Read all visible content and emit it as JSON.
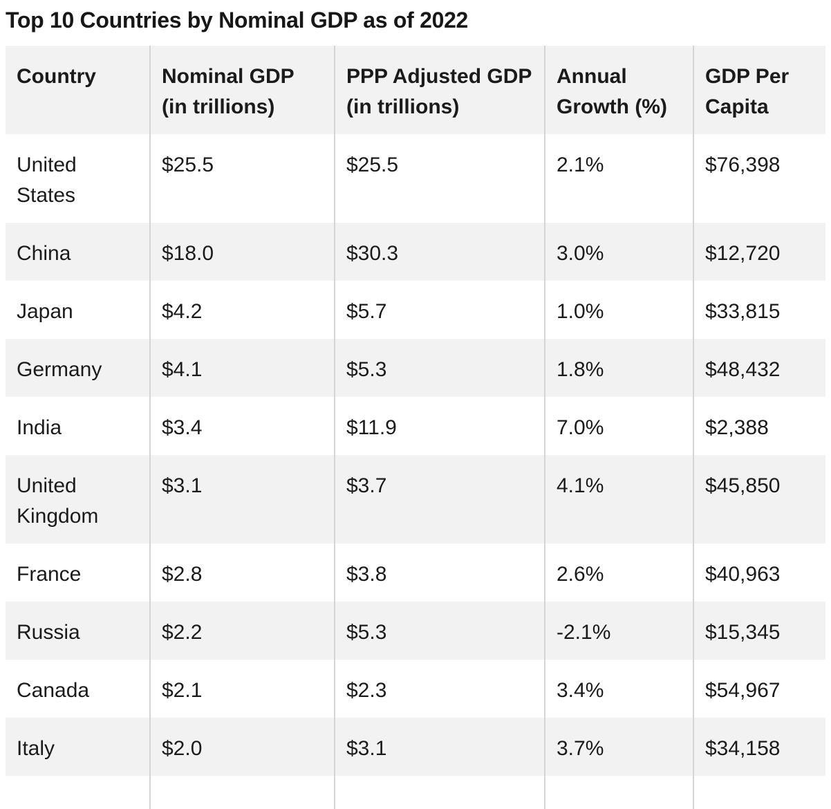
{
  "title": "Top 10 Countries by Nominal GDP as of 2022",
  "table": {
    "columns": [
      "Country",
      "Nominal GDP (in trillions)",
      "PPP Adjusted GDP (in trillions)",
      "Annual Growth (%)",
      "GDP Per Capita"
    ],
    "rows": [
      [
        "United States",
        "$25.5",
        "$25.5",
        "2.1%",
        "$76,398"
      ],
      [
        "China",
        "$18.0",
        "$30.3",
        "3.0%",
        "$12,720"
      ],
      [
        "Japan",
        "$4.2",
        "$5.7",
        "1.0%",
        "$33,815"
      ],
      [
        "Germany",
        "$4.1",
        "$5.3",
        "1.8%",
        "$48,432"
      ],
      [
        "India",
        "$3.4",
        "$11.9",
        "7.0%",
        "$2,388"
      ],
      [
        "United Kingdom",
        "$3.1",
        "$3.7",
        "4.1%",
        "$45,850"
      ],
      [
        "France",
        "$2.8",
        "$3.8",
        "2.6%",
        "$40,963"
      ],
      [
        "Russia",
        "$2.2",
        "$5.3",
        "-2.1%",
        "$15,345"
      ],
      [
        "Canada",
        "$2.1",
        "$2.3",
        "3.4%",
        "$54,967"
      ],
      [
        "Italy",
        "$2.0",
        "$3.1",
        "3.7%",
        "$34,158"
      ]
    ]
  },
  "chart_data": {
    "type": "table",
    "title": "Top 10 Countries by Nominal GDP as of 2022",
    "columns": [
      "Country",
      "Nominal GDP (in trillions)",
      "PPP Adjusted GDP (in trillions)",
      "Annual Growth (%)",
      "GDP Per Capita"
    ],
    "categories": [
      "United States",
      "China",
      "Japan",
      "Germany",
      "India",
      "United Kingdom",
      "France",
      "Russia",
      "Canada",
      "Italy"
    ],
    "series": [
      {
        "name": "Nominal GDP (in trillions USD)",
        "values": [
          25.5,
          18.0,
          4.2,
          4.1,
          3.4,
          3.1,
          2.8,
          2.2,
          2.1,
          2.0
        ]
      },
      {
        "name": "PPP Adjusted GDP (in trillions USD)",
        "values": [
          25.5,
          30.3,
          5.7,
          5.3,
          11.9,
          3.7,
          3.8,
          5.3,
          2.3,
          3.1
        ]
      },
      {
        "name": "Annual Growth (%)",
        "values": [
          2.1,
          3.0,
          1.0,
          1.8,
          7.0,
          4.1,
          2.6,
          -2.1,
          3.4,
          3.7
        ]
      },
      {
        "name": "GDP Per Capita (USD)",
        "values": [
          76398,
          12720,
          33815,
          48432,
          2388,
          45850,
          40963,
          15345,
          54967,
          34158
        ]
      }
    ]
  },
  "colors": {
    "header_bg": "#f2f2f2",
    "row_stripe": "#f2f2f2",
    "divider": "#d5d5d5",
    "text": "#1b1b1b",
    "background": "#ffffff"
  }
}
